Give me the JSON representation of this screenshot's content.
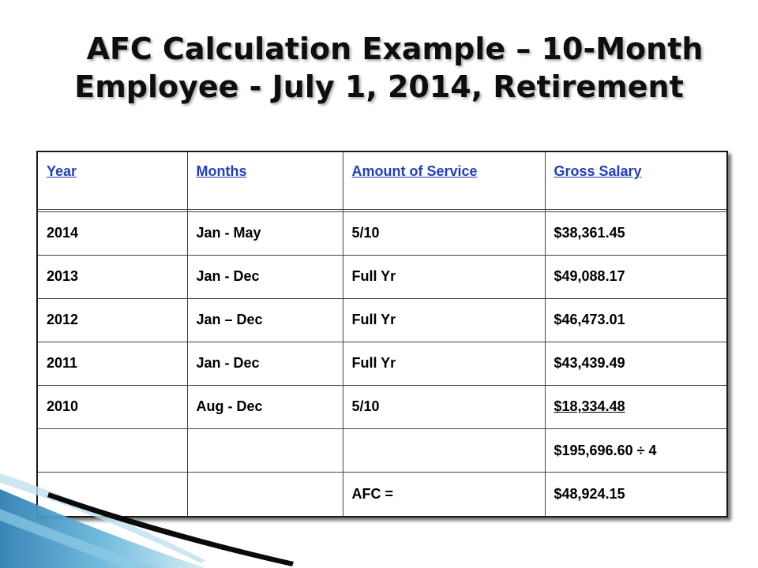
{
  "slide": {
    "title_line1": "AFC Calculation Example – 10-Month",
    "title_line2": "Employee - July 1, 2014, Retirement"
  },
  "table": {
    "headers": [
      "Year",
      "Months",
      "Amount of Service",
      "Gross  Salary"
    ],
    "rows": [
      [
        "",
        "",
        "",
        ""
      ],
      [
        "2014",
        "Jan - May",
        "5/10",
        "$38,361.45"
      ],
      [
        "2013",
        "Jan - Dec",
        "Full Yr",
        "$49,088.17"
      ],
      [
        "2012",
        "Jan – Dec",
        "Full Yr",
        "$46,473.01"
      ],
      [
        "2011",
        "Jan - Dec",
        "Full Yr",
        "$43,439.49"
      ],
      [
        "2010",
        "Aug - Dec",
        "5/10",
        "$18,334.48"
      ],
      [
        "",
        "",
        "",
        "$195,696.60 ÷ 4"
      ],
      [
        "",
        "",
        "AFC =",
        "$48,924.15"
      ]
    ]
  },
  "colors": {
    "header_text": "#1f3fbf",
    "deco_blue": "#4ba3cf",
    "deco_light": "#bfe0ef"
  }
}
